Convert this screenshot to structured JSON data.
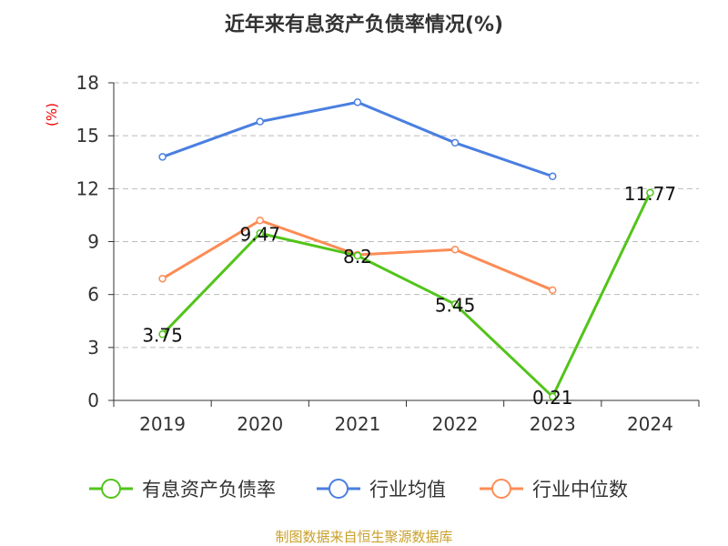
{
  "chart_data": {
    "type": "line",
    "title": "近年来有息资产负债率情况(%)",
    "ylabel": "(%)",
    "xlabel": "",
    "categories": [
      "2019",
      "2020",
      "2021",
      "2022",
      "2023",
      "2024"
    ],
    "ylim": [
      0,
      18
    ],
    "yticks": [
      "0",
      "3",
      "6",
      "9",
      "12",
      "15",
      "18"
    ],
    "grid": true,
    "legend_position": "bottom",
    "series": [
      {
        "name": "有息资产负债率",
        "color": "#52c41a",
        "values": [
          3.75,
          9.47,
          8.2,
          5.45,
          0.21,
          11.77
        ],
        "labels": [
          "3.75",
          "9.47",
          "8.2",
          "5.45",
          "0.21",
          "11.77"
        ]
      },
      {
        "name": "行业均值",
        "color": "#4a7fe0",
        "values": [
          13.8,
          15.8,
          16.9,
          14.6,
          12.7,
          null
        ]
      },
      {
        "name": "行业中位数",
        "color": "#fb8c56",
        "values": [
          6.9,
          10.2,
          8.25,
          8.55,
          6.25,
          null
        ]
      }
    ],
    "source": "制图数据来自恒生聚源数据库"
  }
}
